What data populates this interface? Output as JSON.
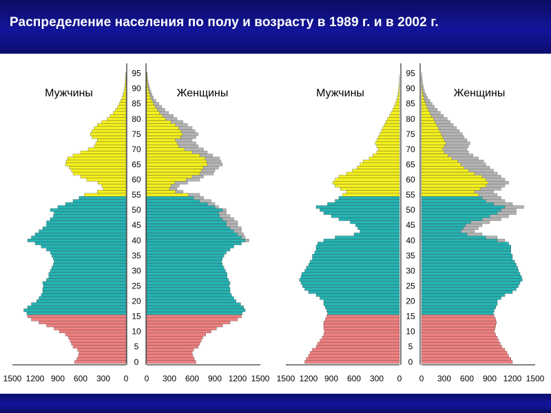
{
  "title": "Распределение населения по полу и возрасту в 1989 г. и в 2002 г.",
  "colors": {
    "header_bg": "#10128a",
    "children": "#f08080",
    "working": "#26b3b3",
    "elderly": "#f4f01e",
    "difference_gray": "#b3b3b3"
  },
  "chart_data": [
    {
      "type": "bar",
      "subtype": "population-pyramid",
      "year": "1989",
      "male_label": "Мужчины",
      "female_label": "Женщины",
      "age_ticks": [
        "0",
        "5",
        "10",
        "15",
        "20",
        "25",
        "30",
        "35",
        "40",
        "45",
        "50",
        "55",
        "60",
        "65",
        "70",
        "75",
        "80",
        "85",
        "90",
        "95"
      ],
      "male_xticks": [
        "1500",
        "1200",
        "900",
        "600",
        "300",
        "0"
      ],
      "female_xticks": [
        "0",
        "300",
        "600",
        "900",
        "1200",
        "1500"
      ],
      "xlim": [
        0,
        1500
      ],
      "ages": [
        0,
        1,
        2,
        3,
        4,
        5,
        6,
        7,
        8,
        9,
        10,
        11,
        12,
        13,
        14,
        15,
        16,
        17,
        18,
        19,
        20,
        21,
        22,
        23,
        24,
        25,
        26,
        27,
        28,
        29,
        30,
        31,
        32,
        33,
        34,
        35,
        36,
        37,
        38,
        39,
        40,
        41,
        42,
        43,
        44,
        45,
        46,
        47,
        48,
        49,
        50,
        51,
        52,
        53,
        54,
        55,
        56,
        57,
        58,
        59,
        60,
        61,
        62,
        63,
        64,
        65,
        66,
        67,
        68,
        69,
        70,
        71,
        72,
        73,
        74,
        75,
        76,
        77,
        78,
        79,
        80,
        81,
        82,
        83,
        84,
        85,
        86,
        87,
        88,
        89,
        90,
        91,
        92,
        93,
        94,
        95
      ],
      "male": [
        680,
        650,
        630,
        620,
        640,
        700,
        720,
        740,
        760,
        800,
        880,
        950,
        1050,
        1150,
        1250,
        1300,
        1310,
        1350,
        1300,
        1250,
        1180,
        1150,
        1120,
        1100,
        1100,
        1090,
        1100,
        1050,
        1020,
        1020,
        1000,
        980,
        960,
        950,
        960,
        980,
        1000,
        1050,
        1120,
        1200,
        1300,
        1250,
        1200,
        1150,
        1100,
        1050,
        1050,
        1000,
        960,
        950,
        1000,
        900,
        800,
        700,
        620,
        550,
        380,
        300,
        320,
        370,
        520,
        600,
        700,
        720,
        750,
        800,
        790,
        770,
        700,
        600,
        500,
        420,
        400,
        380,
        450,
        470,
        450,
        420,
        380,
        320,
        250,
        210,
        170,
        140,
        110,
        90,
        70,
        50,
        40,
        30,
        20,
        15,
        10,
        8,
        5,
        3
      ],
      "female": [
        650,
        630,
        610,
        600,
        620,
        680,
        700,
        720,
        740,
        780,
        850,
        920,
        1000,
        1100,
        1200,
        1250,
        1260,
        1300,
        1280,
        1240,
        1180,
        1150,
        1120,
        1100,
        1100,
        1090,
        1100,
        1080,
        1060,
        1060,
        1040,
        1020,
        1000,
        990,
        1000,
        1020,
        1050,
        1100,
        1150,
        1250,
        1350,
        1300,
        1280,
        1250,
        1250,
        1200,
        1200,
        1150,
        1100,
        1050,
        1050,
        950,
        900,
        850,
        750,
        700,
        480,
        400,
        430,
        540,
        700,
        750,
        880,
        900,
        950,
        1000,
        980,
        960,
        870,
        800,
        750,
        680,
        650,
        600,
        650,
        680,
        640,
        600,
        540,
        480,
        400,
        350,
        290,
        240,
        200,
        160,
        120,
        90,
        70,
        55,
        40,
        30,
        20,
        12,
        8,
        5
      ],
      "male_young": [
        680,
        650,
        630,
        620,
        640,
        700,
        720,
        740,
        760,
        800,
        880,
        950,
        1050,
        1150,
        1250,
        1300,
        1310,
        1350,
        1300,
        1250,
        1180,
        1150,
        1120,
        1100,
        1100,
        1090,
        1100,
        1050,
        1020,
        1020,
        1000,
        980,
        960,
        950,
        960,
        980,
        1000,
        1050,
        1120,
        1200,
        1300,
        1250,
        1200,
        1150,
        1100,
        1050,
        1050,
        1000,
        960,
        950,
        1000,
        900,
        800,
        700,
        620,
        550,
        380,
        300,
        320,
        370,
        520,
        600,
        700,
        720,
        750,
        800,
        790,
        770,
        700,
        600,
        500,
        420,
        400,
        380,
        450,
        470,
        450,
        420,
        380,
        320,
        250,
        210,
        170,
        140,
        110,
        90,
        70,
        50,
        40,
        30,
        20,
        15,
        10,
        8,
        5,
        3
      ]
    },
    {
      "type": "bar",
      "subtype": "population-pyramid",
      "year": "2002",
      "male_label": "Мужчины",
      "female_label": "Женщины",
      "age_ticks": [
        "0",
        "5",
        "10",
        "15",
        "20",
        "25",
        "30",
        "35",
        "40",
        "45",
        "50",
        "55",
        "60",
        "65",
        "70",
        "75",
        "80",
        "85",
        "90",
        "95"
      ],
      "male_xticks": [
        "1500",
        "1200",
        "900",
        "600",
        "300",
        "0"
      ],
      "female_xticks": [
        "0",
        "300",
        "600",
        "900",
        "1200",
        "1500"
      ],
      "xlim": [
        0,
        1500
      ],
      "ages": [
        0,
        1,
        2,
        3,
        4,
        5,
        6,
        7,
        8,
        9,
        10,
        11,
        12,
        13,
        14,
        15,
        16,
        17,
        18,
        19,
        20,
        21,
        22,
        23,
        24,
        25,
        26,
        27,
        28,
        29,
        30,
        31,
        32,
        33,
        34,
        35,
        36,
        37,
        38,
        39,
        40,
        41,
        42,
        43,
        44,
        45,
        46,
        47,
        48,
        49,
        50,
        51,
        52,
        53,
        54,
        55,
        56,
        57,
        58,
        59,
        60,
        61,
        62,
        63,
        64,
        65,
        66,
        67,
        68,
        69,
        70,
        71,
        72,
        73,
        74,
        75,
        76,
        77,
        78,
        79,
        80,
        81,
        82,
        83,
        84,
        85,
        86,
        87,
        88,
        89,
        90,
        91,
        92,
        93,
        94,
        95
      ],
      "male": [
        1250,
        1230,
        1200,
        1180,
        1150,
        1100,
        1080,
        1050,
        1020,
        1000,
        990,
        1000,
        1000,
        1000,
        980,
        960,
        950,
        960,
        980,
        1000,
        1000,
        1050,
        1100,
        1200,
        1250,
        1280,
        1300,
        1320,
        1300,
        1290,
        1250,
        1230,
        1200,
        1180,
        1150,
        1150,
        1120,
        1100,
        1100,
        1080,
        1000,
        850,
        600,
        520,
        550,
        580,
        650,
        800,
        900,
        1000,
        1050,
        1100,
        950,
        850,
        800,
        750,
        700,
        780,
        850,
        880,
        850,
        800,
        700,
        620,
        560,
        520,
        480,
        400,
        350,
        300,
        280,
        300,
        320,
        300,
        280,
        260,
        240,
        220,
        200,
        180,
        160,
        130,
        110,
        90,
        70,
        55,
        40,
        30,
        20,
        14,
        9,
        6,
        4,
        2,
        1,
        0
      ],
      "female": [
        1200,
        1180,
        1150,
        1130,
        1100,
        1060,
        1040,
        1020,
        1000,
        980,
        960,
        970,
        980,
        990,
        980,
        960,
        950,
        960,
        980,
        1000,
        1000,
        1050,
        1100,
        1200,
        1250,
        1280,
        1300,
        1330,
        1320,
        1300,
        1280,
        1270,
        1250,
        1230,
        1200,
        1200,
        1180,
        1180,
        1180,
        1150,
        1100,
        1000,
        800,
        700,
        750,
        800,
        900,
        1050,
        1150,
        1250,
        1250,
        1350,
        1200,
        1100,
        1050,
        1000,
        950,
        1050,
        1100,
        1150,
        1100,
        1050,
        1000,
        950,
        900,
        850,
        820,
        750,
        680,
        620,
        600,
        620,
        640,
        600,
        560,
        540,
        500,
        460,
        420,
        380,
        340,
        290,
        250,
        210,
        170,
        140,
        110,
        80,
        60,
        40,
        30,
        20,
        12,
        8,
        5,
        3
      ],
      "male_young": [
        1250,
        1230,
        1200,
        1180,
        1150,
        1100,
        1080,
        1050,
        1020,
        1000,
        990,
        1000,
        1000,
        1000,
        980,
        960,
        950,
        960,
        980,
        1000,
        1000,
        1050,
        1100,
        1200,
        1250,
        1280,
        1300,
        1320,
        1300,
        1290,
        1250,
        1230,
        1200,
        1180,
        1150,
        1150,
        1120,
        1100,
        1100,
        1080,
        1000,
        850,
        600,
        520,
        550,
        580,
        650,
        800,
        900,
        1000,
        1050,
        1100,
        950,
        850,
        800,
        750,
        700,
        780,
        850,
        880,
        850,
        800,
        700,
        620,
        560,
        520,
        480,
        400,
        350,
        300,
        280,
        300,
        320,
        300,
        280,
        260,
        240,
        220,
        200,
        180,
        160,
        130,
        110,
        90,
        70,
        55,
        40,
        30,
        20,
        14,
        9,
        6,
        4,
        2,
        1,
        0
      ]
    }
  ]
}
